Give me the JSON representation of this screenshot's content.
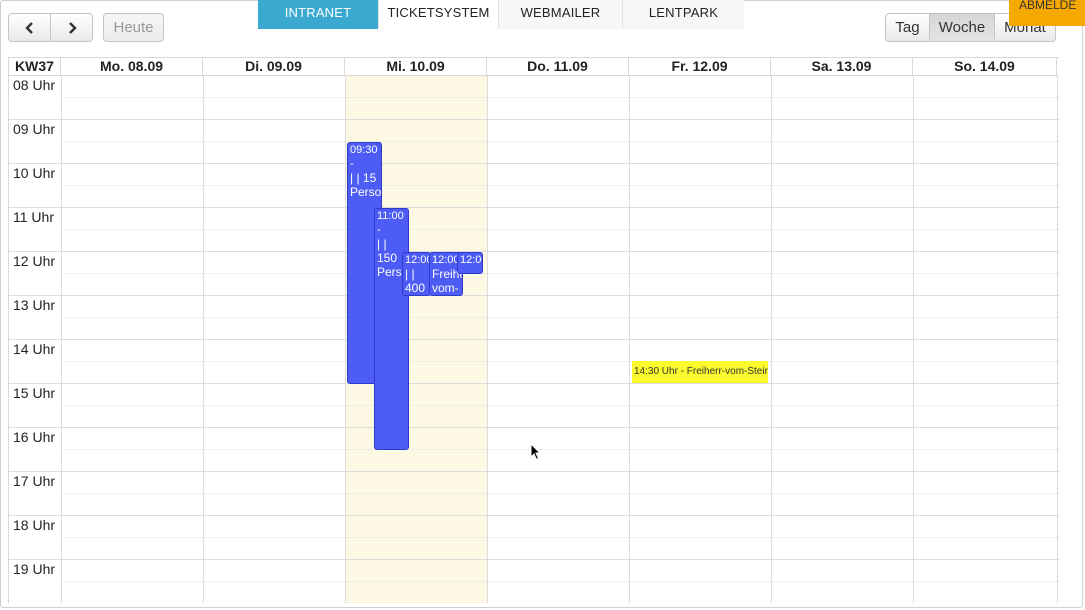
{
  "nav": {
    "tabs": [
      {
        "label": "INTRANET"
      },
      {
        "label": "TICKETSYSTEM"
      },
      {
        "label": "WEBMAILER"
      },
      {
        "label": "LENTPARK"
      }
    ],
    "logout_label": "ABMELDE"
  },
  "toolbar": {
    "prev_icon": "chevron-left-icon",
    "next_icon": "chevron-right-icon",
    "today_label": "Heute",
    "views": [
      {
        "label": "Tag"
      },
      {
        "label": "Woche"
      },
      {
        "label": "Monat"
      }
    ],
    "active_view": "Woche"
  },
  "calendar": {
    "week_label": "KW37",
    "days": [
      {
        "label": "Mo. 08.09"
      },
      {
        "label": "Di. 09.09"
      },
      {
        "label": "Mi. 10.09"
      },
      {
        "label": "Do. 11.09"
      },
      {
        "label": "Fr. 12.09"
      },
      {
        "label": "Sa. 13.09"
      },
      {
        "label": "So. 14.09"
      }
    ],
    "hours": [
      {
        "label": "08 Uhr"
      },
      {
        "label": "09 Uhr"
      },
      {
        "label": "10 Uhr"
      },
      {
        "label": "11 Uhr"
      },
      {
        "label": "12 Uhr"
      },
      {
        "label": "13 Uhr"
      },
      {
        "label": "14 Uhr"
      },
      {
        "label": "15 Uhr"
      },
      {
        "label": "16 Uhr"
      },
      {
        "label": "17 Uhr"
      },
      {
        "label": "18 Uhr"
      },
      {
        "label": "19 Uhr"
      }
    ],
    "events": [
      {
        "line1": "09:30 -",
        "line2": "| | 15",
        "line3": "Perso"
      },
      {
        "line1": "11:00 -",
        "line2": "| |",
        "line3": "150",
        "line4": "Pers"
      },
      {
        "line1": "12:00",
        "line2": "| |",
        "line3": "400"
      },
      {
        "line1": "12:00",
        "line2": "Freihe",
        "line3": "vom-S"
      },
      {
        "line1": "12:00"
      },
      {
        "line1": "14:30 Uhr - Freiherr-vom-Stein"
      }
    ],
    "colors": {
      "event_blue": "#4d5cf5",
      "event_yellow": "#fafa2c",
      "today_bg": "#fcf8e3",
      "intranet_tab": "#3aa8cf",
      "logout_bg": "#f5a800"
    }
  }
}
